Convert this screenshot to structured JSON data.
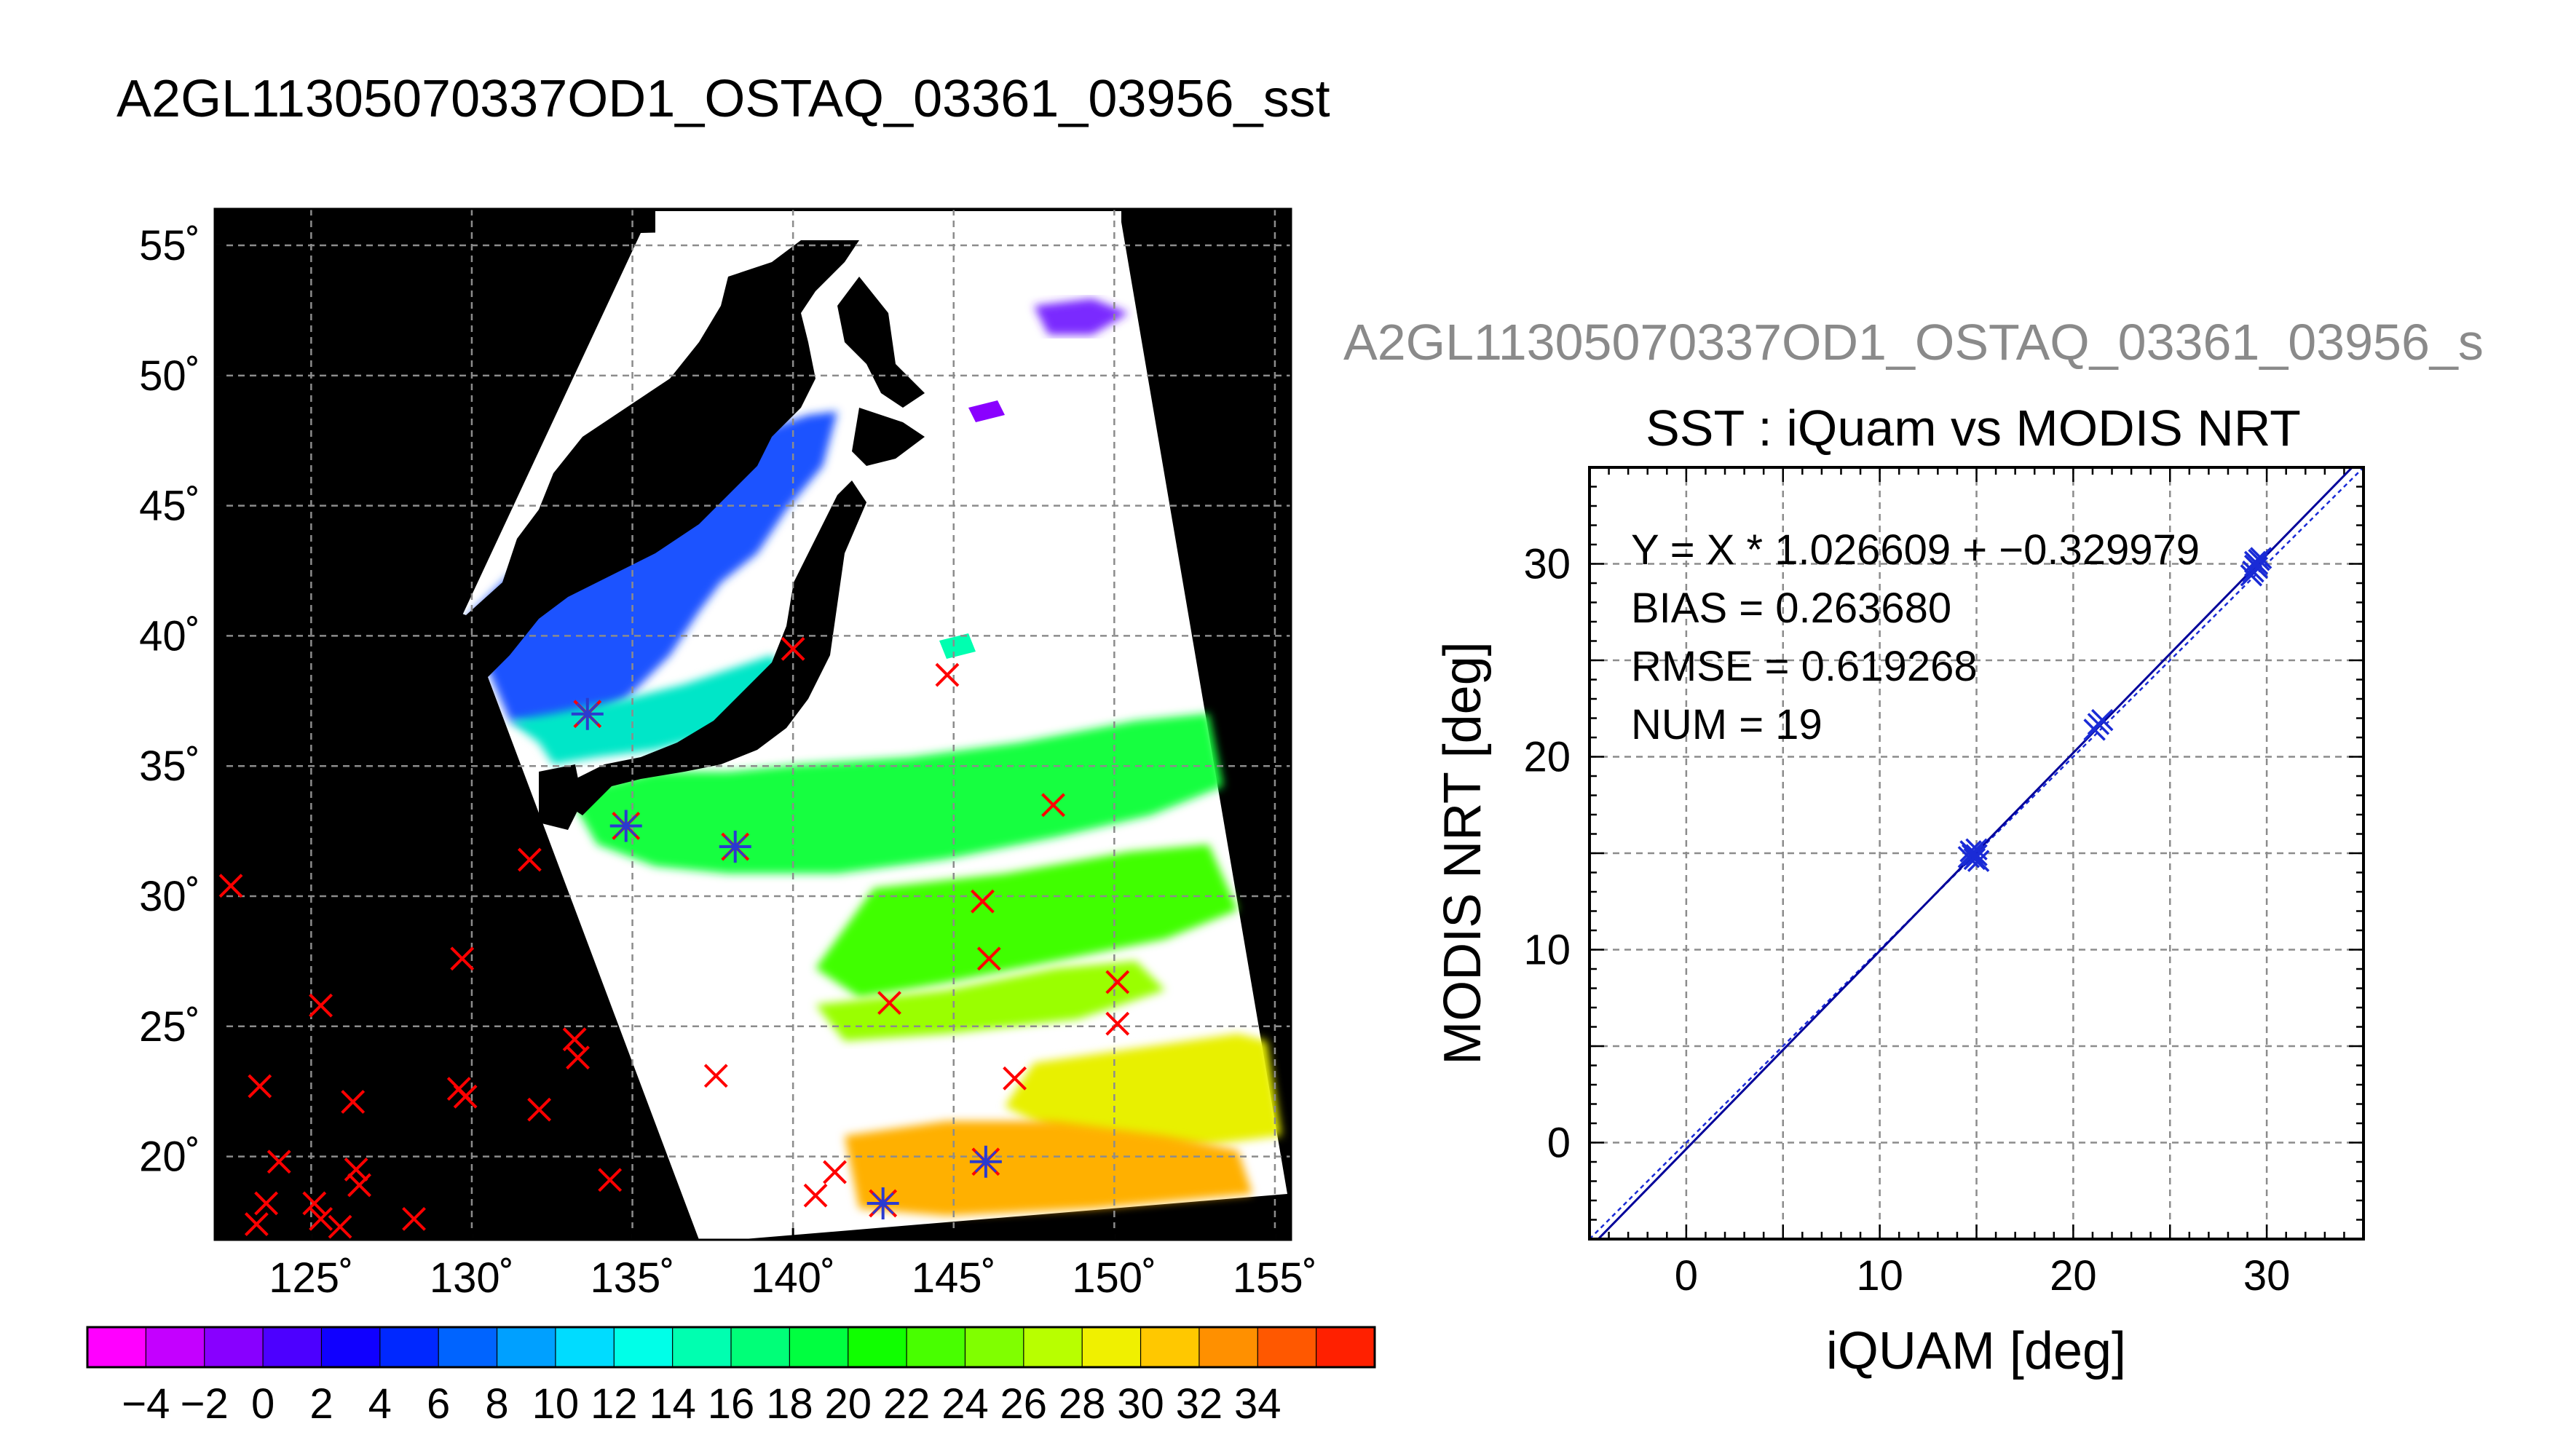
{
  "header": {
    "main_title": "A2GL11305070337OD1_OSTAQ_03361_03956_sst",
    "secondary_title": "A2GL11305070337OD1_OSTAQ_03361_03956_s"
  },
  "chart_data": [
    {
      "type": "map",
      "title": "",
      "lon_ticks": [
        125,
        130,
        135,
        140,
        145,
        150,
        155
      ],
      "lat_ticks": [
        20,
        25,
        30,
        35,
        40,
        45,
        50,
        55
      ],
      "lon_tick_labels": [
        "125˚",
        "130˚",
        "135˚",
        "140˚",
        "145˚",
        "150˚",
        "155˚"
      ],
      "lat_tick_labels": [
        "20˚",
        "25˚",
        "30˚",
        "35˚",
        "40˚",
        "45˚",
        "50˚",
        "55˚"
      ],
      "xlim": [
        122,
        155.5
      ],
      "ylim": [
        16.8,
        56.4
      ],
      "grid": true,
      "colors": {
        "land_and_nodata": "#000000",
        "cloud": "#ffffff",
        "grid": "#8c8c8c",
        "match_marker": "#ff0000",
        "valid_match_marker": "#2a3bd0"
      },
      "colorbar": {
        "ticks": [
          -4,
          -2,
          0,
          2,
          4,
          6,
          8,
          10,
          12,
          14,
          16,
          18,
          20,
          22,
          24,
          26,
          28,
          30,
          32,
          34
        ],
        "tick_labels": [
          "−4",
          "−2",
          "0",
          "2",
          "4",
          "6",
          "8",
          "10",
          "12",
          "14",
          "16",
          "18",
          "20",
          "22",
          "24",
          "26",
          "28",
          "30",
          "32",
          "34"
        ],
        "colors": [
          "#ff00ff",
          "#c400ff",
          "#8800ff",
          "#4c00ff",
          "#1000ff",
          "#0028ff",
          "#0064ff",
          "#00a0ff",
          "#00dcff",
          "#00ffe8",
          "#00ffb0",
          "#00ff78",
          "#00ff40",
          "#10ff00",
          "#48ff00",
          "#80ff00",
          "#b8ff00",
          "#f0f000",
          "#ffc800",
          "#ff9000",
          "#ff5800",
          "#ff2000"
        ]
      },
      "match_points_x": [
        [
          122.5,
          30.4
        ],
        [
          123.4,
          22.7
        ],
        [
          124.0,
          19.8
        ],
        [
          123.6,
          18.2
        ],
        [
          123.3,
          17.4
        ],
        [
          125.3,
          25.8
        ],
        [
          125.1,
          18.2
        ],
        [
          125.3,
          17.6
        ],
        [
          125.9,
          17.3
        ],
        [
          126.4,
          19.5
        ],
        [
          126.5,
          18.9
        ],
        [
          126.3,
          22.1
        ],
        [
          128.2,
          17.6
        ],
        [
          129.7,
          27.6
        ],
        [
          129.6,
          22.6
        ],
        [
          129.8,
          22.3
        ],
        [
          131.8,
          31.4
        ],
        [
          132.1,
          21.8
        ],
        [
          133.2,
          24.5
        ],
        [
          133.3,
          23.8
        ],
        [
          134.3,
          19.1
        ],
        [
          137.6,
          23.1
        ],
        [
          140.0,
          39.5
        ],
        [
          140.7,
          18.5
        ],
        [
          141.3,
          19.4
        ],
        [
          143.0,
          25.9
        ],
        [
          144.8,
          38.5
        ],
        [
          145.9,
          29.8
        ],
        [
          146.1,
          27.6
        ],
        [
          146.9,
          23.0
        ],
        [
          148.1,
          33.5
        ],
        [
          150.1,
          26.7
        ],
        [
          150.1,
          25.1
        ]
      ],
      "valid_match_points": [
        [
          133.6,
          37.0
        ],
        [
          134.8,
          32.7
        ],
        [
          138.2,
          31.9
        ],
        [
          142.8,
          18.2
        ],
        [
          146.0,
          19.8
        ]
      ]
    },
    {
      "type": "scatter",
      "title": "SST : iQuam vs MODIS NRT",
      "xlabel": "iQUAM [deg]",
      "ylabel": "MODIS NRT [deg]",
      "xlim": [
        -5,
        35
      ],
      "ylim": [
        -5,
        35
      ],
      "xticks": [
        0,
        10,
        20,
        30
      ],
      "yticks": [
        0,
        10,
        20,
        30
      ],
      "grid": true,
      "annotations": [
        "Y = X * 1.026609 + −0.329979",
        "BIAS = 0.263680",
        "RMSE = 0.619268",
        "NUM = 19"
      ],
      "fit": {
        "slope": 1.026609,
        "intercept": -0.329979
      },
      "points": [
        [
          14.6,
          14.8
        ],
        [
          14.8,
          15.0
        ],
        [
          14.9,
          14.7
        ],
        [
          15.0,
          14.9
        ],
        [
          14.7,
          15.1
        ],
        [
          15.1,
          14.6
        ],
        [
          21.1,
          21.4
        ],
        [
          21.5,
          21.9
        ],
        [
          29.2,
          29.4
        ],
        [
          29.4,
          29.9
        ],
        [
          29.6,
          30.2
        ],
        [
          29.3,
          29.6
        ],
        [
          29.5,
          30.0
        ],
        [
          29.7,
          30.3
        ],
        [
          29.4,
          30.1
        ],
        [
          14.8,
          14.9
        ],
        [
          15.0,
          15.2
        ],
        [
          21.3,
          21.7
        ],
        [
          29.5,
          29.8
        ]
      ],
      "colors": {
        "points": "#1a2bd6",
        "fit_line": "#00009a"
      }
    }
  ]
}
